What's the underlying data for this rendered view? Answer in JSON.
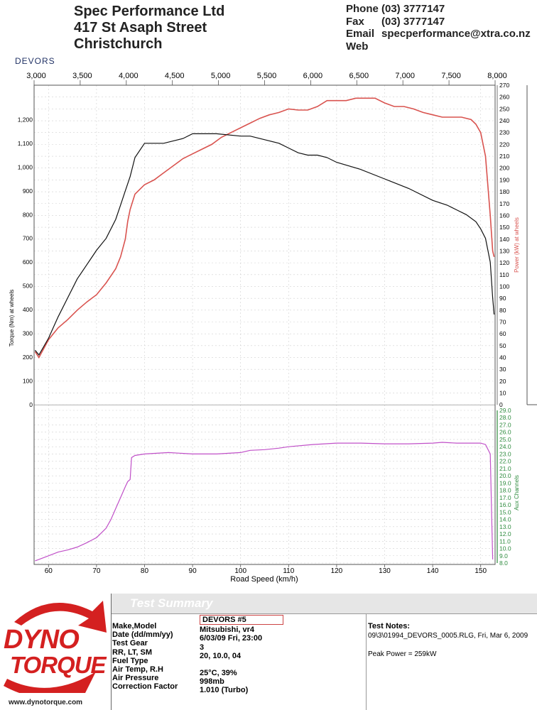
{
  "header": {
    "company": "Spec Performance Ltd",
    "street": "417 St  Asaph Street",
    "city": "Christchurch",
    "phone_label": "Phone",
    "phone": "(03) 3777147",
    "fax_label": "Fax",
    "fax": "(03) 3777147",
    "email_label": "Email",
    "email": "specperformance@xtra.co.nz",
    "web_label": "Web",
    "web": ""
  },
  "run_label": "DEVORS",
  "colors": {
    "power": "#d9534f",
    "torque": "#111111",
    "aux": "#c050c8",
    "aux_axis": "#2e8b3e",
    "grid": "#d0d0d0"
  },
  "chart_data": [
    {
      "type": "line",
      "title": "",
      "xlabel": "Road Speed (km/h)",
      "x_top_label": "",
      "ylabel_left": "Torque (Nm) at wheels",
      "ylabel_right": "Power (kW) at wheels",
      "x_ticks_rpm": [
        "3,000",
        "3,500",
        "4,000",
        "4,500",
        "5,000",
        "5,500",
        "6,000",
        "6,500",
        "7,000",
        "7,500",
        "8,000"
      ],
      "x_ticks_speed": [
        "60",
        "70",
        "80",
        "90",
        "100",
        "110",
        "120",
        "130",
        "140",
        "150"
      ],
      "x_speed_range": [
        57,
        153
      ],
      "torque_ticks": [
        "0",
        "100",
        "200",
        "300",
        "400",
        "500",
        "600",
        "700",
        "800",
        "900",
        "1,000",
        "1,100",
        "1,200"
      ],
      "power_ticks": [
        "0",
        "10",
        "20",
        "30",
        "40",
        "50",
        "60",
        "70",
        "80",
        "90",
        "100",
        "110",
        "120",
        "130",
        "140",
        "150",
        "160",
        "170",
        "180",
        "190",
        "200",
        "210",
        "220",
        "230",
        "240",
        "250",
        "260",
        "270"
      ],
      "torque_ylim": [
        0,
        1200
      ],
      "power_ylim": [
        0,
        270
      ],
      "series": [
        {
          "name": "Power (kW) at wheels",
          "axis": "power",
          "x": [
            57.2,
            58,
            60,
            62,
            64,
            66,
            68,
            70,
            72,
            74,
            75,
            76,
            76.5,
            77,
            78,
            80,
            82,
            84,
            86,
            88,
            90,
            92,
            94,
            96,
            98,
            100,
            102,
            104,
            106,
            108,
            110,
            112,
            114,
            116,
            118,
            120,
            122,
            124,
            126,
            128,
            130,
            132,
            134,
            136,
            138,
            140,
            142,
            144,
            146,
            148,
            149,
            150,
            151,
            152,
            152.5,
            152.8
          ],
          "y": [
            45,
            40,
            55,
            65,
            72,
            80,
            87,
            93,
            103,
            115,
            125,
            140,
            155,
            165,
            178,
            186,
            190,
            196,
            202,
            208,
            212,
            216,
            220,
            226,
            230,
            234,
            238,
            242,
            245,
            247,
            250,
            249,
            249,
            252,
            257,
            257,
            257,
            259,
            259,
            259,
            255,
            252,
            252,
            250,
            247,
            245,
            243,
            243,
            243,
            241,
            237,
            230,
            210,
            160,
            130,
            125
          ]
        },
        {
          "name": "Torque (Nm) at wheels",
          "axis": "torque",
          "x": [
            57.2,
            58,
            60,
            62,
            64,
            66,
            68,
            70,
            72,
            74,
            75,
            76,
            77,
            78,
            80,
            82,
            84,
            86,
            88,
            90,
            95,
            100,
            102,
            104,
            106,
            108,
            110,
            112,
            114,
            116,
            118,
            120,
            125,
            130,
            135,
            140,
            143,
            145,
            147,
            149,
            150,
            151,
            152,
            152.5,
            152.8
          ],
          "y": [
            230,
            210,
            280,
            370,
            450,
            530,
            590,
            650,
            700,
            780,
            840,
            900,
            960,
            1040,
            1100,
            1100,
            1100,
            1110,
            1120,
            1140,
            1140,
            1130,
            1130,
            1120,
            1110,
            1100,
            1080,
            1060,
            1050,
            1050,
            1040,
            1020,
            990,
            950,
            910,
            860,
            840,
            820,
            800,
            770,
            740,
            700,
            600,
            450,
            380
          ]
        }
      ]
    },
    {
      "type": "line",
      "title": "",
      "ylabel_right": "Aux Channels",
      "aux_ticks": [
        "8.0",
        "9.0",
        "10.0",
        "11.0",
        "12.0",
        "13.0",
        "14.0",
        "15.0",
        "16.0",
        "17.0",
        "18.0",
        "19.0",
        "20.0",
        "21.0",
        "22.0",
        "23.0",
        "24.0",
        "25.0",
        "26.0",
        "27.0",
        "28.0",
        "29.0"
      ],
      "ylim": [
        8,
        29
      ],
      "series": [
        {
          "name": "",
          "x": [
            57.2,
            58,
            60,
            62,
            64,
            66,
            68,
            70,
            72,
            73,
            74,
            75,
            76,
            76.5,
            77,
            77.3,
            78,
            80,
            85,
            90,
            95,
            100,
            102,
            105,
            108,
            110,
            115,
            120,
            125,
            130,
            135,
            140,
            142,
            145,
            148,
            150,
            151,
            152,
            152.5
          ],
          "y": [
            8.3,
            8.5,
            9.0,
            9.5,
            9.8,
            10.2,
            10.8,
            11.5,
            12.8,
            14.0,
            15.5,
            17.0,
            18.5,
            19.2,
            19.5,
            22.5,
            22.8,
            23.0,
            23.2,
            23.0,
            23.0,
            23.2,
            23.5,
            23.6,
            23.8,
            24.0,
            24.3,
            24.5,
            24.5,
            24.4,
            24.4,
            24.5,
            24.6,
            24.5,
            24.5,
            24.5,
            24.3,
            23.0,
            8.5
          ]
        }
      ]
    }
  ],
  "summary": {
    "title": "Test Summary",
    "run_name": "DEVORS  #5",
    "logo_line1": "DYNO",
    "logo_line2": "TORQUE",
    "logo_url": "www.dynotorque.com",
    "fields": [
      {
        "label": "Make,Model",
        "value": "Mitsubishi, vr4"
      },
      {
        "label": "Date (dd/mm/yy)",
        "value": "6/03/09 Fri, 23:00"
      },
      {
        "label": "Test Gear",
        "value": "3"
      },
      {
        "label": "RR, LT, SM",
        "value": "20,    10.0,    04"
      },
      {
        "label": "Fuel Type",
        "value": ""
      },
      {
        "label": "Air Temp, R.H",
        "value": "25°C,     39%"
      },
      {
        "label": "Air Pressure",
        "value": "998mb"
      },
      {
        "label": "Correction Factor",
        "value": "1.010 (Turbo)"
      }
    ],
    "notes_title": "Test Notes:",
    "notes_file": "09\\3\\01994_DEVORS_0005.RLG, Fri, Mar 6, 2009",
    "notes_peak": "Peak Power = 259kW"
  }
}
